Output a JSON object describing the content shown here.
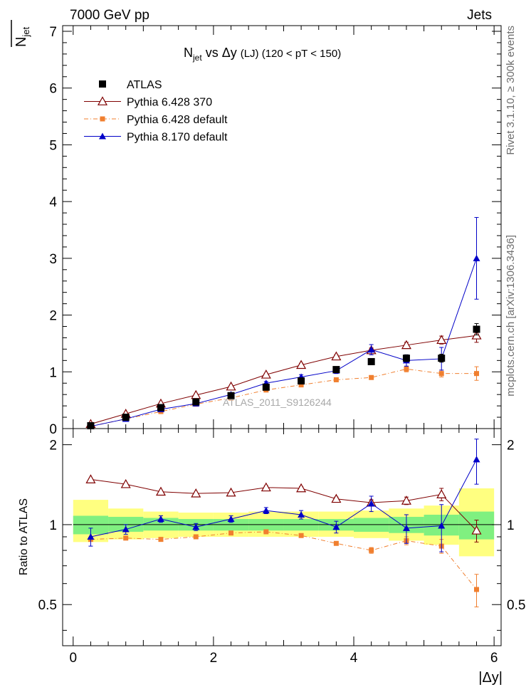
{
  "header": {
    "left": "7000 GeV pp",
    "right": "Jets"
  },
  "side": {
    "upper": "Rivet 3.1.10, ≥ 300k events",
    "lower": "mcplots.cern.ch [arXiv:1306.3436]"
  },
  "watermark": "ATLAS_2011_S9126244",
  "chart_data": [
    {
      "type": "line",
      "panel": "main",
      "title": "N_jet vs Δy (LJ) (120 < pT < 150)",
      "title_parts": {
        "n": "N",
        "sub": "jet",
        "mid": " vs Δy ",
        "small": "(LJ) (120 < pT < 150)"
      },
      "ylabel": "N_jet (overlined)",
      "ylabel_parts": {
        "n": "N",
        "sub": "jet"
      },
      "xlabel": "|Δy|",
      "xlim": [
        -0.15,
        6.1
      ],
      "ylim": [
        0,
        7.1
      ],
      "xticks": [
        0,
        2,
        4,
        6
      ],
      "yticks": [
        0,
        1,
        2,
        3,
        4,
        5,
        6,
        7
      ],
      "x": [
        0.25,
        0.75,
        1.25,
        1.75,
        2.25,
        2.75,
        3.25,
        3.75,
        4.25,
        4.75,
        5.25,
        5.75
      ],
      "series": [
        {
          "name": "ATLAS",
          "marker": "square",
          "color": "#000000",
          "values": [
            0.05,
            0.2,
            0.37,
            0.47,
            0.58,
            0.73,
            0.84,
            1.04,
            1.18,
            1.24,
            1.24,
            1.75
          ],
          "errors": [
            0.01,
            0.02,
            0.02,
            0.03,
            0.03,
            0.03,
            0.04,
            0.05,
            0.05,
            0.06,
            0.07,
            0.1
          ]
        },
        {
          "name": "Pythia 6.428 370",
          "marker": "open-triangle",
          "color": "#7f0000",
          "values": [
            0.08,
            0.26,
            0.44,
            0.59,
            0.74,
            0.95,
            1.12,
            1.27,
            1.38,
            1.47,
            1.56,
            1.64
          ],
          "errors": [
            0.01,
            0.01,
            0.01,
            0.01,
            0.02,
            0.02,
            0.03,
            0.03,
            0.04,
            0.05,
            0.07,
            0.12
          ]
        },
        {
          "name": "Pythia 6.428 default",
          "marker": "square-small",
          "color": "#f07f2f",
          "values": [
            0.04,
            0.17,
            0.3,
            0.43,
            0.54,
            0.68,
            0.77,
            0.86,
            0.9,
            1.05,
            0.97,
            0.97
          ],
          "errors": [
            0.005,
            0.01,
            0.01,
            0.01,
            0.01,
            0.02,
            0.02,
            0.03,
            0.03,
            0.05,
            0.06,
            0.12
          ]
        },
        {
          "name": "Pythia 8.170 default",
          "marker": "triangle",
          "color": "#0000c8",
          "values": [
            0.04,
            0.17,
            0.34,
            0.44,
            0.6,
            0.8,
            0.91,
            1.02,
            1.39,
            1.2,
            1.23,
            3.0
          ],
          "errors": [
            0.005,
            0.01,
            0.01,
            0.02,
            0.02,
            0.03,
            0.04,
            0.05,
            0.09,
            0.1,
            0.2,
            0.72
          ]
        }
      ]
    },
    {
      "type": "line",
      "panel": "ratio",
      "ylabel": "Ratio to ATLAS",
      "xlabel": "|Δy|",
      "xlim": [
        -0.15,
        6.1
      ],
      "ylim": [
        0.35,
        2.3
      ],
      "yticks": [
        0.5,
        1,
        2
      ],
      "ytick_labels": [
        "0.5",
        "1",
        "2"
      ],
      "xticks": [
        0,
        2,
        4,
        6
      ],
      "x": [
        0.25,
        0.75,
        1.25,
        1.75,
        2.25,
        2.75,
        3.25,
        3.75,
        4.25,
        4.75,
        5.25,
        5.75
      ],
      "bins": [
        0.0,
        0.5,
        1.0,
        1.5,
        2.0,
        2.5,
        3.0,
        3.5,
        4.0,
        4.5,
        5.0,
        5.5,
        6.0
      ],
      "band_stat": [
        [
          0.92,
          1.08
        ],
        [
          0.94,
          1.07
        ],
        [
          0.95,
          1.06
        ],
        [
          0.95,
          1.05
        ],
        [
          0.95,
          1.05
        ],
        [
          0.95,
          1.05
        ],
        [
          0.95,
          1.05
        ],
        [
          0.95,
          1.05
        ],
        [
          0.94,
          1.06
        ],
        [
          0.93,
          1.07
        ],
        [
          0.91,
          1.09
        ],
        [
          0.88,
          1.12
        ]
      ],
      "band_total": [
        [
          0.86,
          1.24
        ],
        [
          0.88,
          1.15
        ],
        [
          0.89,
          1.12
        ],
        [
          0.9,
          1.11
        ],
        [
          0.9,
          1.11
        ],
        [
          0.9,
          1.12
        ],
        [
          0.9,
          1.12
        ],
        [
          0.9,
          1.12
        ],
        [
          0.89,
          1.13
        ],
        [
          0.87,
          1.15
        ],
        [
          0.84,
          1.18
        ],
        [
          0.76,
          1.37
        ]
      ],
      "series": [
        {
          "name": "Pythia 6.428 370",
          "marker": "open-triangle",
          "color": "#7f0000",
          "values": [
            1.48,
            1.42,
            1.33,
            1.31,
            1.32,
            1.38,
            1.37,
            1.25,
            1.21,
            1.23,
            1.3,
            0.95
          ],
          "errors": [
            0.01,
            0.01,
            0.01,
            0.01,
            0.01,
            0.02,
            0.02,
            0.02,
            0.03,
            0.04,
            0.07,
            0.09
          ]
        },
        {
          "name": "Pythia 6.428 default",
          "marker": "square-small",
          "color": "#f07f2f",
          "values": [
            0.88,
            0.89,
            0.88,
            0.9,
            0.93,
            0.94,
            0.91,
            0.85,
            0.8,
            0.87,
            0.83,
            0.57
          ],
          "errors": [
            0.01,
            0.01,
            0.01,
            0.01,
            0.01,
            0.01,
            0.01,
            0.01,
            0.02,
            0.03,
            0.05,
            0.08
          ]
        },
        {
          "name": "Pythia 8.170 default",
          "marker": "triangle",
          "color": "#0000c8",
          "values": [
            0.9,
            0.96,
            1.05,
            0.98,
            1.05,
            1.13,
            1.09,
            0.98,
            1.2,
            0.97,
            0.99,
            1.76
          ],
          "errors": [
            0.07,
            0.04,
            0.03,
            0.03,
            0.03,
            0.03,
            0.04,
            0.05,
            0.08,
            0.12,
            0.2,
            0.34
          ]
        }
      ]
    }
  ]
}
